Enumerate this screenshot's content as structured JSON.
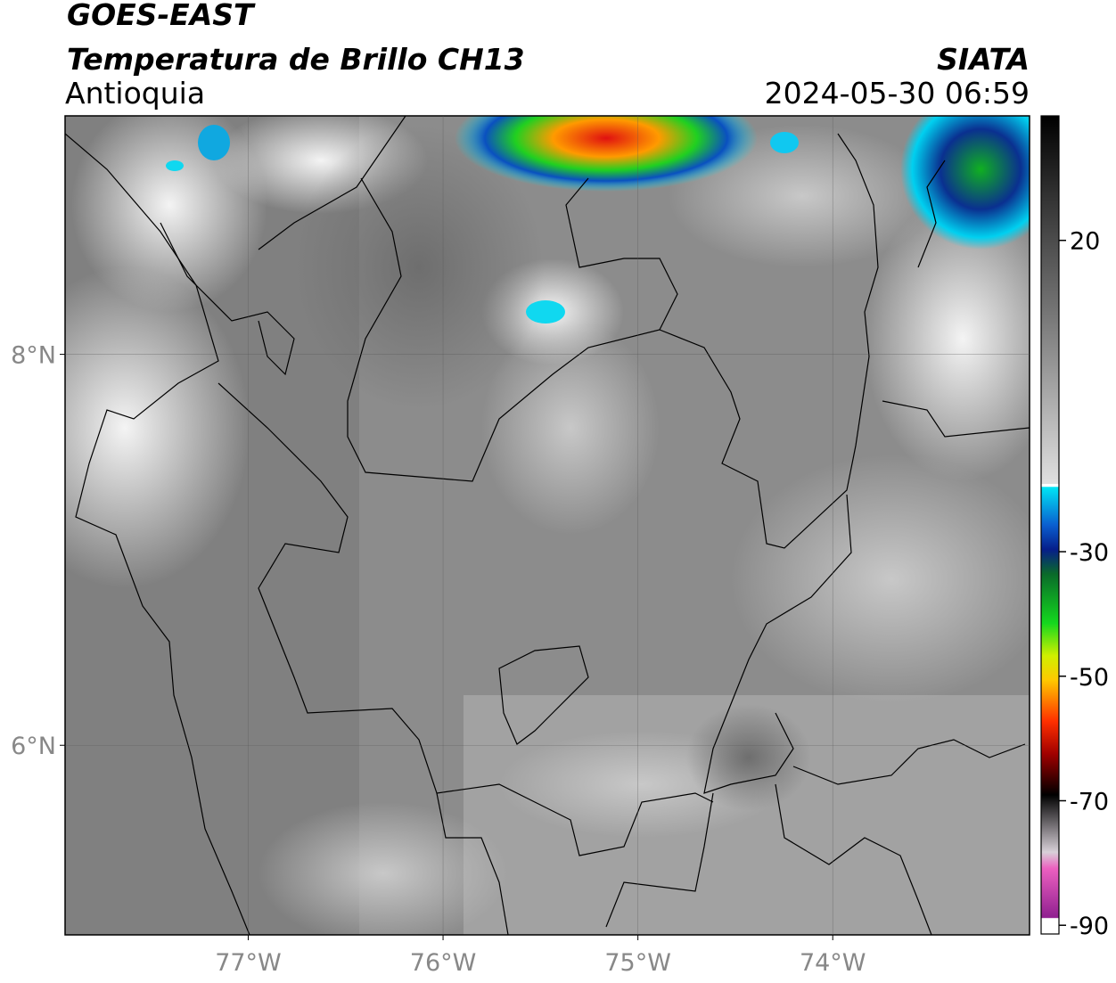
{
  "chart_data": {
    "type": "map",
    "title": "GOES-EAST",
    "subtitle": "Temperatura de Brillo CH13",
    "region": "Antioquia",
    "source": "SIATA",
    "datetime": "2024-05-30 06:59",
    "xlim": [
      -77.94,
      -72.99
    ],
    "ylim": [
      5.03,
      9.22
    ],
    "xticks": [
      {
        "value": -77,
        "label": "77°W"
      },
      {
        "value": -76,
        "label": "76°W"
      },
      {
        "value": -75,
        "label": "75°W"
      },
      {
        "value": -74,
        "label": "74°W"
      }
    ],
    "yticks": [
      {
        "value": 6,
        "label": "6°N"
      },
      {
        "value": 8,
        "label": "8°N"
      }
    ],
    "grid": true,
    "colorbar": {
      "lim": [
        -91.4,
        40
      ],
      "ticks": [
        20,
        -30,
        -50,
        -70,
        -90
      ]
    }
  }
}
